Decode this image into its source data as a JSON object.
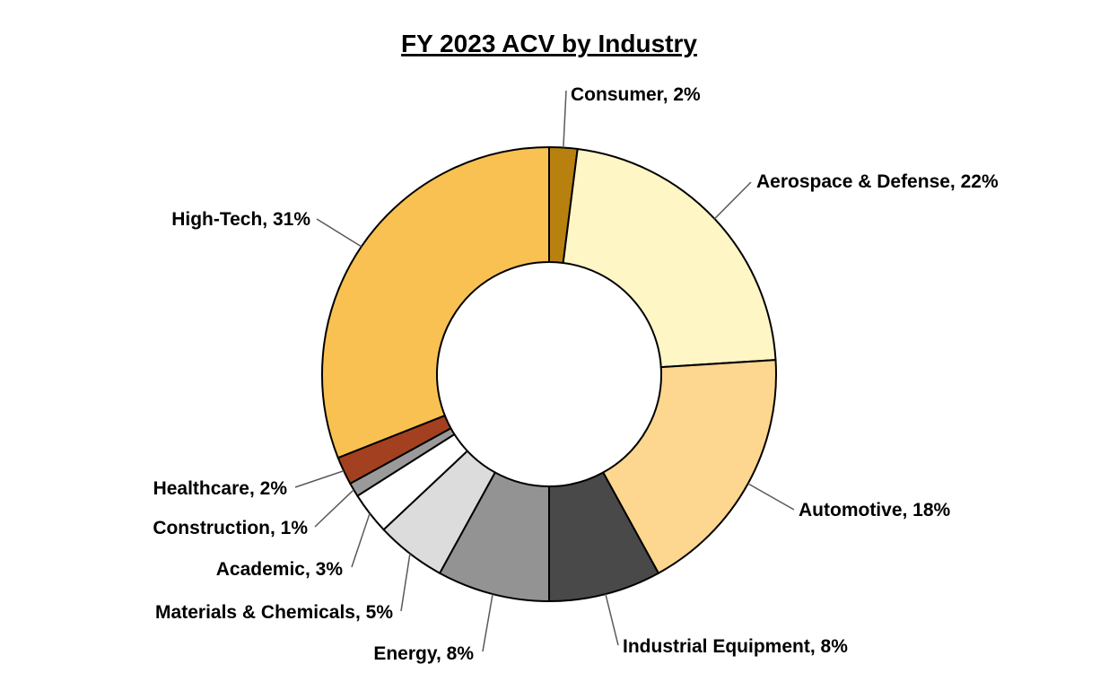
{
  "chart_data": {
    "type": "pie",
    "variant": "donut",
    "title": "FY 2023 ACV by Industry",
    "unit": "%",
    "slices": [
      {
        "label": "Consumer",
        "value": 2,
        "color": "#B8800F"
      },
      {
        "label": "Aerospace & Defense",
        "value": 22,
        "color": "#FFF6C5"
      },
      {
        "label": "Automotive",
        "value": 18,
        "color": "#FDD68F"
      },
      {
        "label": "Industrial Equipment",
        "value": 8,
        "color": "#494949"
      },
      {
        "label": "Energy",
        "value": 8,
        "color": "#939393"
      },
      {
        "label": "Materials & Chemicals",
        "value": 5,
        "color": "#DCDCDC"
      },
      {
        "label": "Academic",
        "value": 3,
        "color": "#FFFFFF"
      },
      {
        "label": "Construction",
        "value": 1,
        "color": "#9A9A9A"
      },
      {
        "label": "Healthcare",
        "value": 2,
        "color": "#A3401F"
      },
      {
        "label": "High-Tech",
        "value": 31,
        "color": "#F9C152"
      }
    ],
    "data_labels": [
      "Consumer, 2%",
      "Aerospace & Defense, 22%",
      "Automotive, 18%",
      "Industrial Equipment, 8%",
      "Energy, 8%",
      "Materials & Chemicals, 5%",
      "Academic, 3%",
      "Construction, 1%",
      "Healthcare, 2%",
      "High-Tech, 31%"
    ],
    "legend": "none",
    "start_angle": "top, clockwise"
  }
}
